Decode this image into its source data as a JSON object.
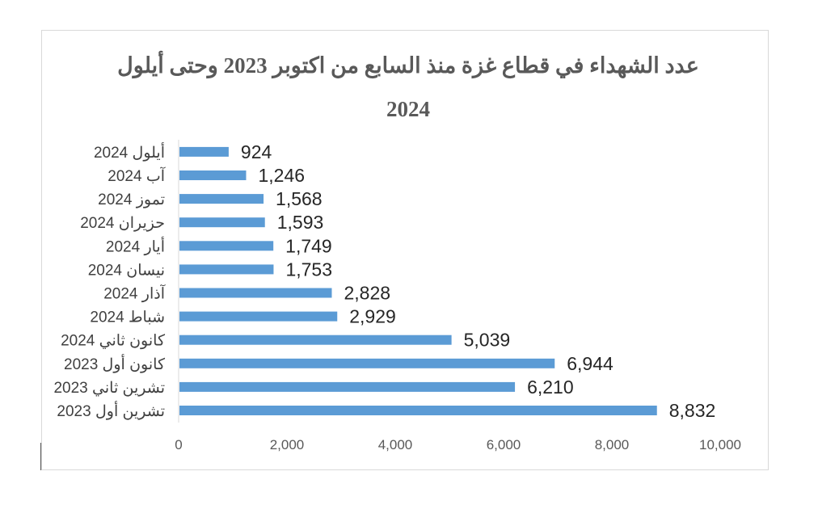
{
  "chart_data": {
    "type": "bar",
    "orientation": "horizontal",
    "title": "عدد الشهداء في قطاع غزة منذ السابع من اكتوبر 2023 وحتى  أيلول 2024",
    "categories": [
      "تشرين أول 2023",
      "تشرين ثاني 2023",
      "كانون أول 2023",
      "كانون ثاني 2024",
      "شباط 2024",
      "آذار 2024",
      "نيسان 2024",
      "أيار 2024",
      "حزيران 2024",
      "تموز 2024",
      "آب 2024",
      "أيلول 2024"
    ],
    "values": [
      8832,
      6210,
      6944,
      5039,
      2929,
      2828,
      1753,
      1749,
      1593,
      1568,
      1246,
      924
    ],
    "data_labels": [
      "8,832",
      "6,210",
      "6,944",
      "5,039",
      "2,929",
      "2,828",
      "1,753",
      "1,749",
      "1,593",
      "1,568",
      "1,246",
      "924"
    ],
    "x_ticks": [
      "0",
      "2,000",
      "4,000",
      "6,000",
      "8,000",
      "10,000"
    ],
    "xlim": [
      0,
      10000
    ],
    "xlabel": "",
    "ylabel": "",
    "grid": false,
    "legend": "none",
    "bar_color": "#5b9bd5"
  }
}
